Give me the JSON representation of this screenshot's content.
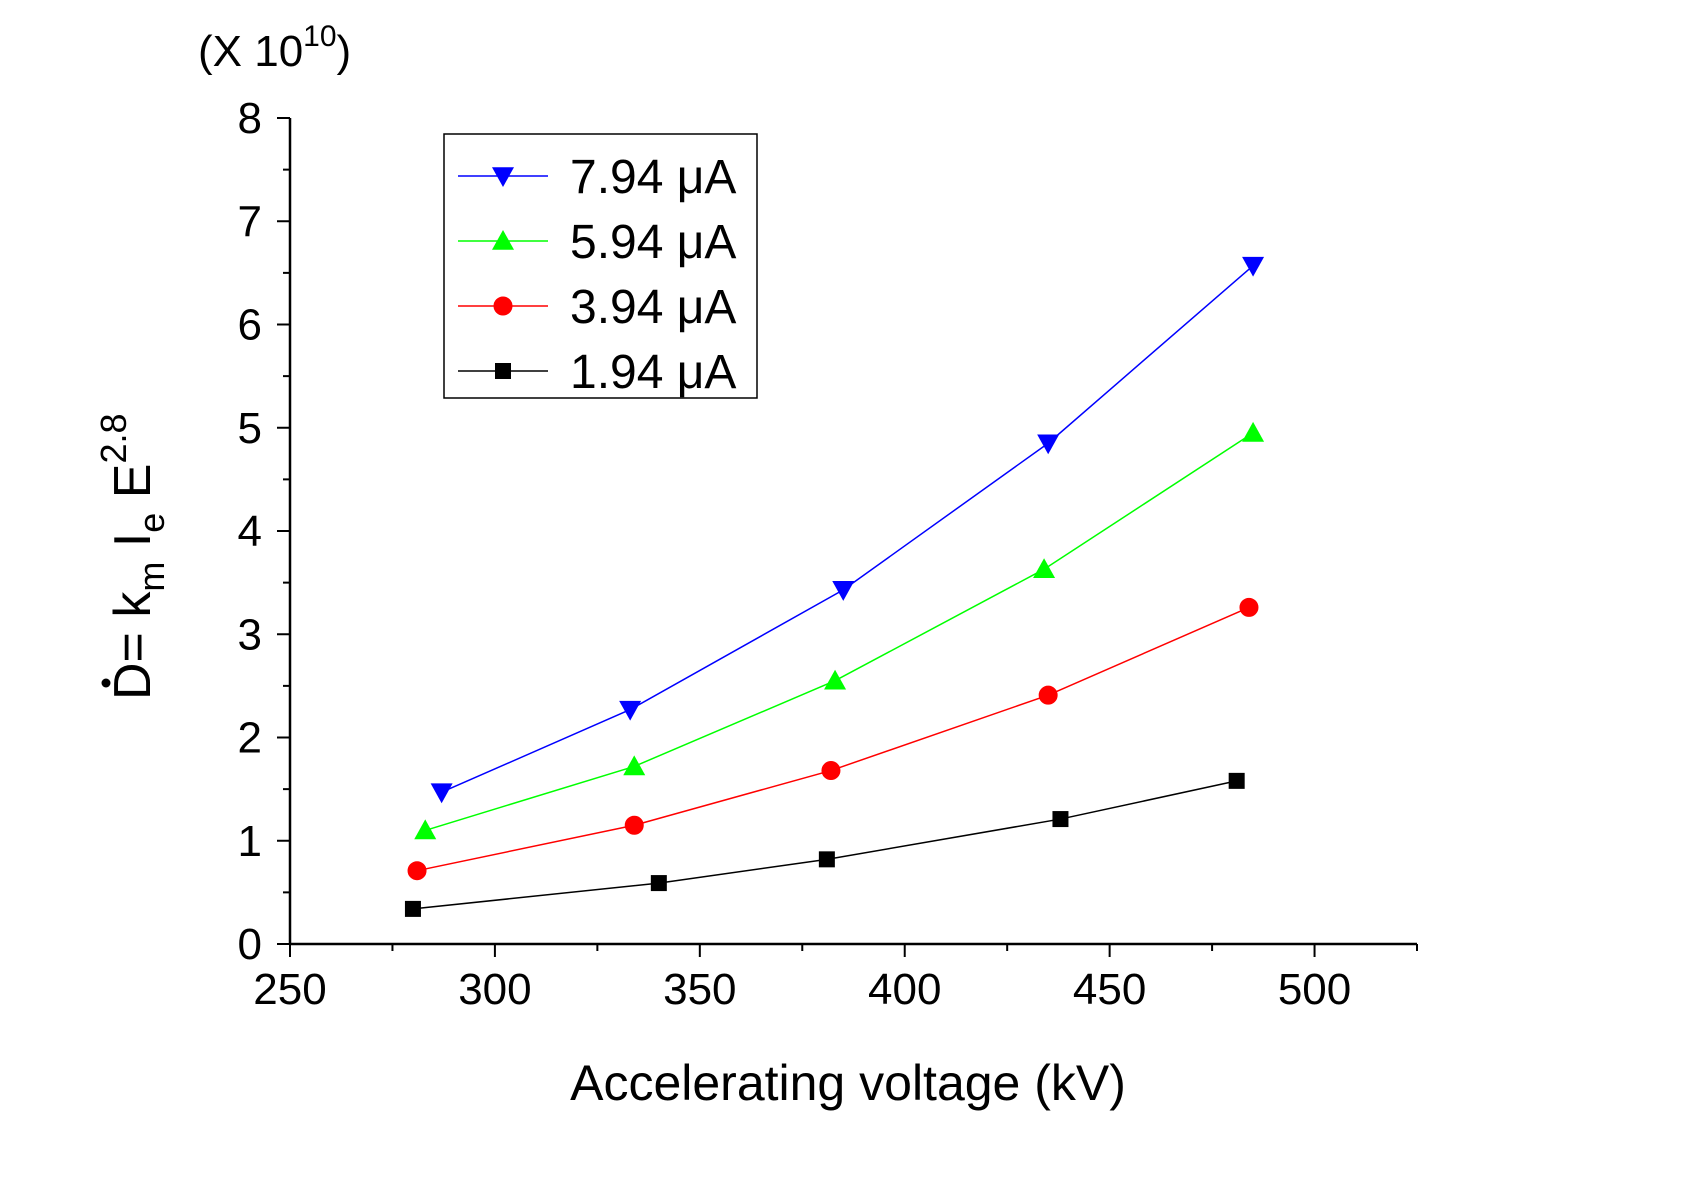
{
  "chart_data": {
    "type": "line",
    "xlabel": "Accelerating voltage (kV)",
    "ylabel": {
      "prefix": "D= k",
      "sub1": "m",
      "mid": " I",
      "sub2": "e",
      "tail": " E",
      "sup": "2.8"
    },
    "y_multiplier": {
      "open": "(X 10",
      "exponent": "10",
      "close": ")"
    },
    "xlim": [
      250,
      525
    ],
    "ylim": [
      0,
      8
    ],
    "x_ticks": [
      250,
      300,
      350,
      400,
      450,
      500
    ],
    "y_ticks": [
      0,
      1,
      2,
      3,
      4,
      5,
      6,
      7,
      8
    ],
    "grid": false,
    "legend_position": "top-left",
    "series": [
      {
        "name": "7.94 μA",
        "color": "#0000ff",
        "marker": "triangle-down",
        "x": [
          287,
          333,
          385,
          435,
          485
        ],
        "y": [
          1.47,
          2.27,
          3.43,
          4.85,
          6.57
        ]
      },
      {
        "name": "5.94 μA",
        "color": "#00ff00",
        "marker": "triangle-up",
        "x": [
          283,
          334,
          383,
          434,
          485
        ],
        "y": [
          1.1,
          1.72,
          2.55,
          3.63,
          4.95
        ]
      },
      {
        "name": "3.94 μA",
        "color": "#ff0000",
        "marker": "circle",
        "x": [
          281,
          334,
          382,
          435,
          484
        ],
        "y": [
          0.71,
          1.15,
          1.68,
          2.41,
          3.26
        ]
      },
      {
        "name": "1.94 μA",
        "color": "#000000",
        "marker": "square",
        "x": [
          280,
          340,
          381,
          438,
          481
        ],
        "y": [
          0.34,
          0.59,
          0.82,
          1.21,
          1.58
        ]
      }
    ]
  }
}
